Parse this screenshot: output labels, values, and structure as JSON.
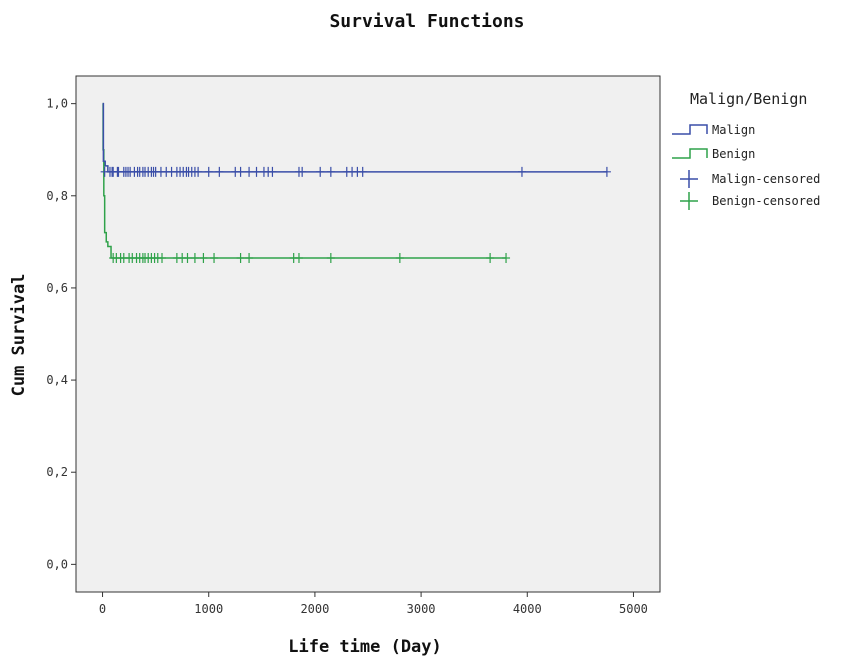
{
  "chart_data": {
    "type": "line",
    "title": "Survival Functions",
    "xlabel": "Life time (Day)",
    "ylabel": "Cum Survival",
    "xlim": [
      -250,
      5250
    ],
    "ylim": [
      -0.06,
      1.06
    ],
    "x_ticks": [
      0,
      1000,
      2000,
      3000,
      4000,
      5000
    ],
    "x_tick_labels": [
      "0",
      "1000",
      "2000",
      "3000",
      "4000",
      "5000"
    ],
    "y_ticks": [
      0.0,
      0.2,
      0.4,
      0.6,
      0.8,
      1.0
    ],
    "y_tick_labels": [
      "0,0",
      "0,2",
      "0,4",
      "0,6",
      "0,8",
      "1,0"
    ],
    "grid": false,
    "legend": {
      "title": "Malign/Benign",
      "placement": "right",
      "entries": [
        "Malign",
        "Benign",
        "Malign-censored",
        "Benign-censored"
      ]
    },
    "colors": {
      "malign": "#3a4ea8",
      "benign": "#2fa24a",
      "plot_background": "#f0f0f0"
    },
    "series": [
      {
        "name": "Malign",
        "step_x": [
          0,
          8,
          25,
          50,
          4750
        ],
        "step_y": [
          1.0,
          0.875,
          0.865,
          0.852,
          0.852
        ],
        "censored_x": [
          20,
          70,
          90,
          100,
          140,
          150,
          200,
          220,
          240,
          260,
          300,
          330,
          350,
          380,
          400,
          430,
          460,
          480,
          500,
          550,
          600,
          650,
          700,
          730,
          760,
          790,
          810,
          840,
          870,
          900,
          1000,
          1100,
          1250,
          1300,
          1380,
          1450,
          1520,
          1560,
          1600,
          1850,
          1880,
          2050,
          2150,
          2300,
          2350,
          2400,
          2450,
          3950,
          4750
        ],
        "censored_y": 0.852
      },
      {
        "name": "Benign",
        "step_x": [
          0,
          5,
          12,
          20,
          35,
          50,
          80,
          3800
        ],
        "step_y": [
          1.0,
          0.9,
          0.8,
          0.72,
          0.7,
          0.69,
          0.665,
          0.665
        ],
        "censored_x": [
          100,
          130,
          170,
          200,
          250,
          280,
          320,
          350,
          380,
          400,
          430,
          460,
          490,
          520,
          560,
          700,
          750,
          800,
          870,
          950,
          1050,
          1300,
          1380,
          1800,
          1850,
          2150,
          2800,
          3650,
          3800
        ],
        "censored_y": 0.665
      }
    ]
  }
}
